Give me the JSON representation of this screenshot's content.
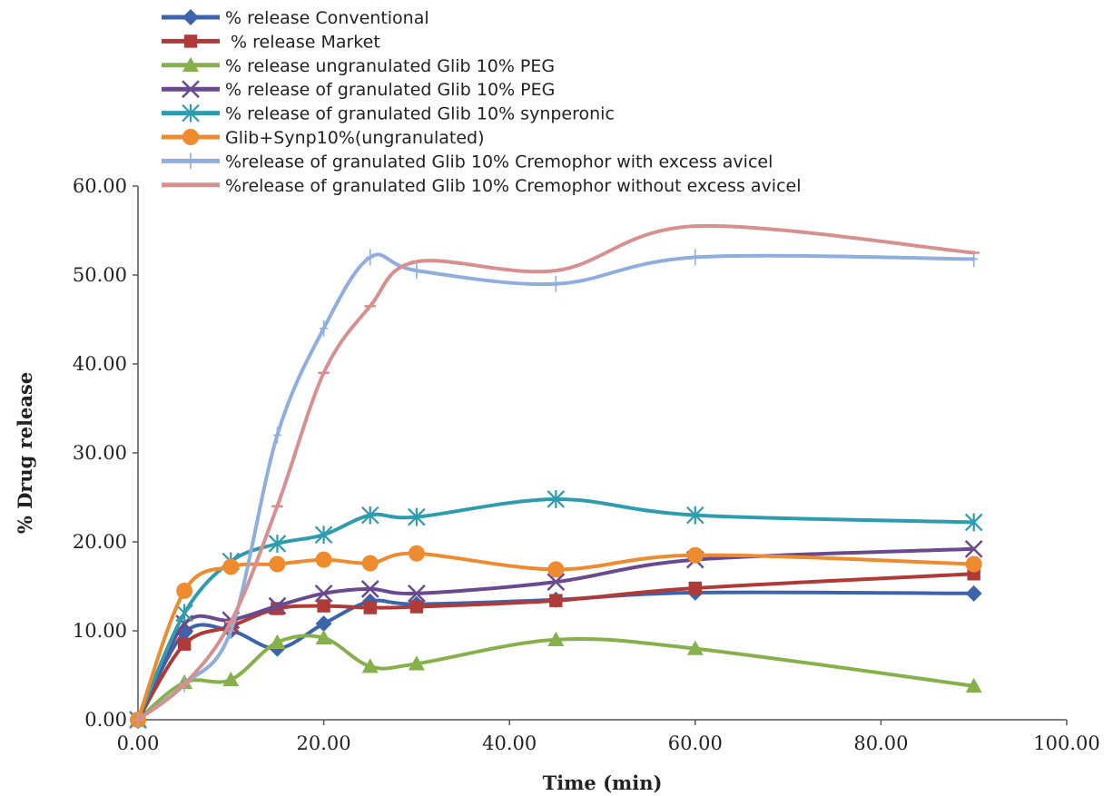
{
  "chart_data": {
    "type": "line",
    "xlabel": "Time (min)",
    "ylabel": "% Drug release",
    "xlim": [
      0,
      100
    ],
    "ylim": [
      0,
      60
    ],
    "x_ticks": [
      0,
      20,
      40,
      60,
      80,
      100
    ],
    "x_tick_labels": [
      "0.00",
      "20.00",
      "40.00",
      "60.00",
      "80.00",
      "100.00"
    ],
    "y_ticks": [
      0,
      10,
      20,
      30,
      40,
      50,
      60
    ],
    "y_tick_labels": [
      "0.00",
      "10.00",
      "20.00",
      "30.00",
      "40.00",
      "50.00",
      "60.00"
    ],
    "grid": false,
    "legend_position": "top",
    "x": [
      0,
      5,
      10,
      15,
      20,
      25,
      30,
      45,
      60,
      90
    ],
    "series": [
      {
        "name": "% release Conventional",
        "color": "#3B64AD",
        "marker": "diamond",
        "values": [
          0,
          9.8,
          10.0,
          8.0,
          10.8,
          13.3,
          13.0,
          13.5,
          14.3,
          14.2
        ]
      },
      {
        "name": " % release Market",
        "color": "#B03A37",
        "marker": "square",
        "values": [
          0,
          8.5,
          10.5,
          12.5,
          12.8,
          12.6,
          12.7,
          13.4,
          14.8,
          16.4
        ]
      },
      {
        "name": "% release ungranulated Glib 10% PEG",
        "color": "#86B04A",
        "marker": "triangle",
        "values": [
          0,
          4.2,
          4.5,
          8.7,
          9.2,
          6.0,
          6.3,
          9.0,
          8.0,
          3.8
        ]
      },
      {
        "name": "% release of granulated Glib 10% PEG",
        "color": "#6A4A8E",
        "marker": "x",
        "values": [
          0,
          10.8,
          11.2,
          12.8,
          14.2,
          14.7,
          14.2,
          15.5,
          18.0,
          19.2
        ]
      },
      {
        "name": "% release of granulated Glib 10% synperonic",
        "color": "#2E9CAF",
        "marker": "star",
        "values": [
          0,
          12.0,
          17.8,
          19.8,
          20.8,
          23.0,
          22.8,
          24.8,
          23.0,
          22.2
        ]
      },
      {
        "name": "Glib+Synp10%(ungranulated)",
        "color": "#EE8B2F",
        "marker": "circle",
        "values": [
          0,
          14.5,
          17.2,
          17.5,
          18.0,
          17.6,
          18.7,
          16.9,
          18.5,
          17.5
        ]
      },
      {
        "name": "%release of granulated Glib 10% Cremophor with excess avicel",
        "color": "#8FAEDE",
        "marker": "plus",
        "values": [
          0,
          4.0,
          10.0,
          32.0,
          44.0,
          52.0,
          50.5,
          49.0,
          52.0,
          51.8
        ]
      },
      {
        "name": "%release of granulated Glib 10% Cremophor without excess avicel",
        "color": "#D78F90",
        "marker": "dash",
        "values": [
          0,
          4.0,
          11.0,
          24.0,
          39.0,
          46.5,
          51.5,
          50.5,
          55.5,
          52.5
        ]
      }
    ]
  }
}
